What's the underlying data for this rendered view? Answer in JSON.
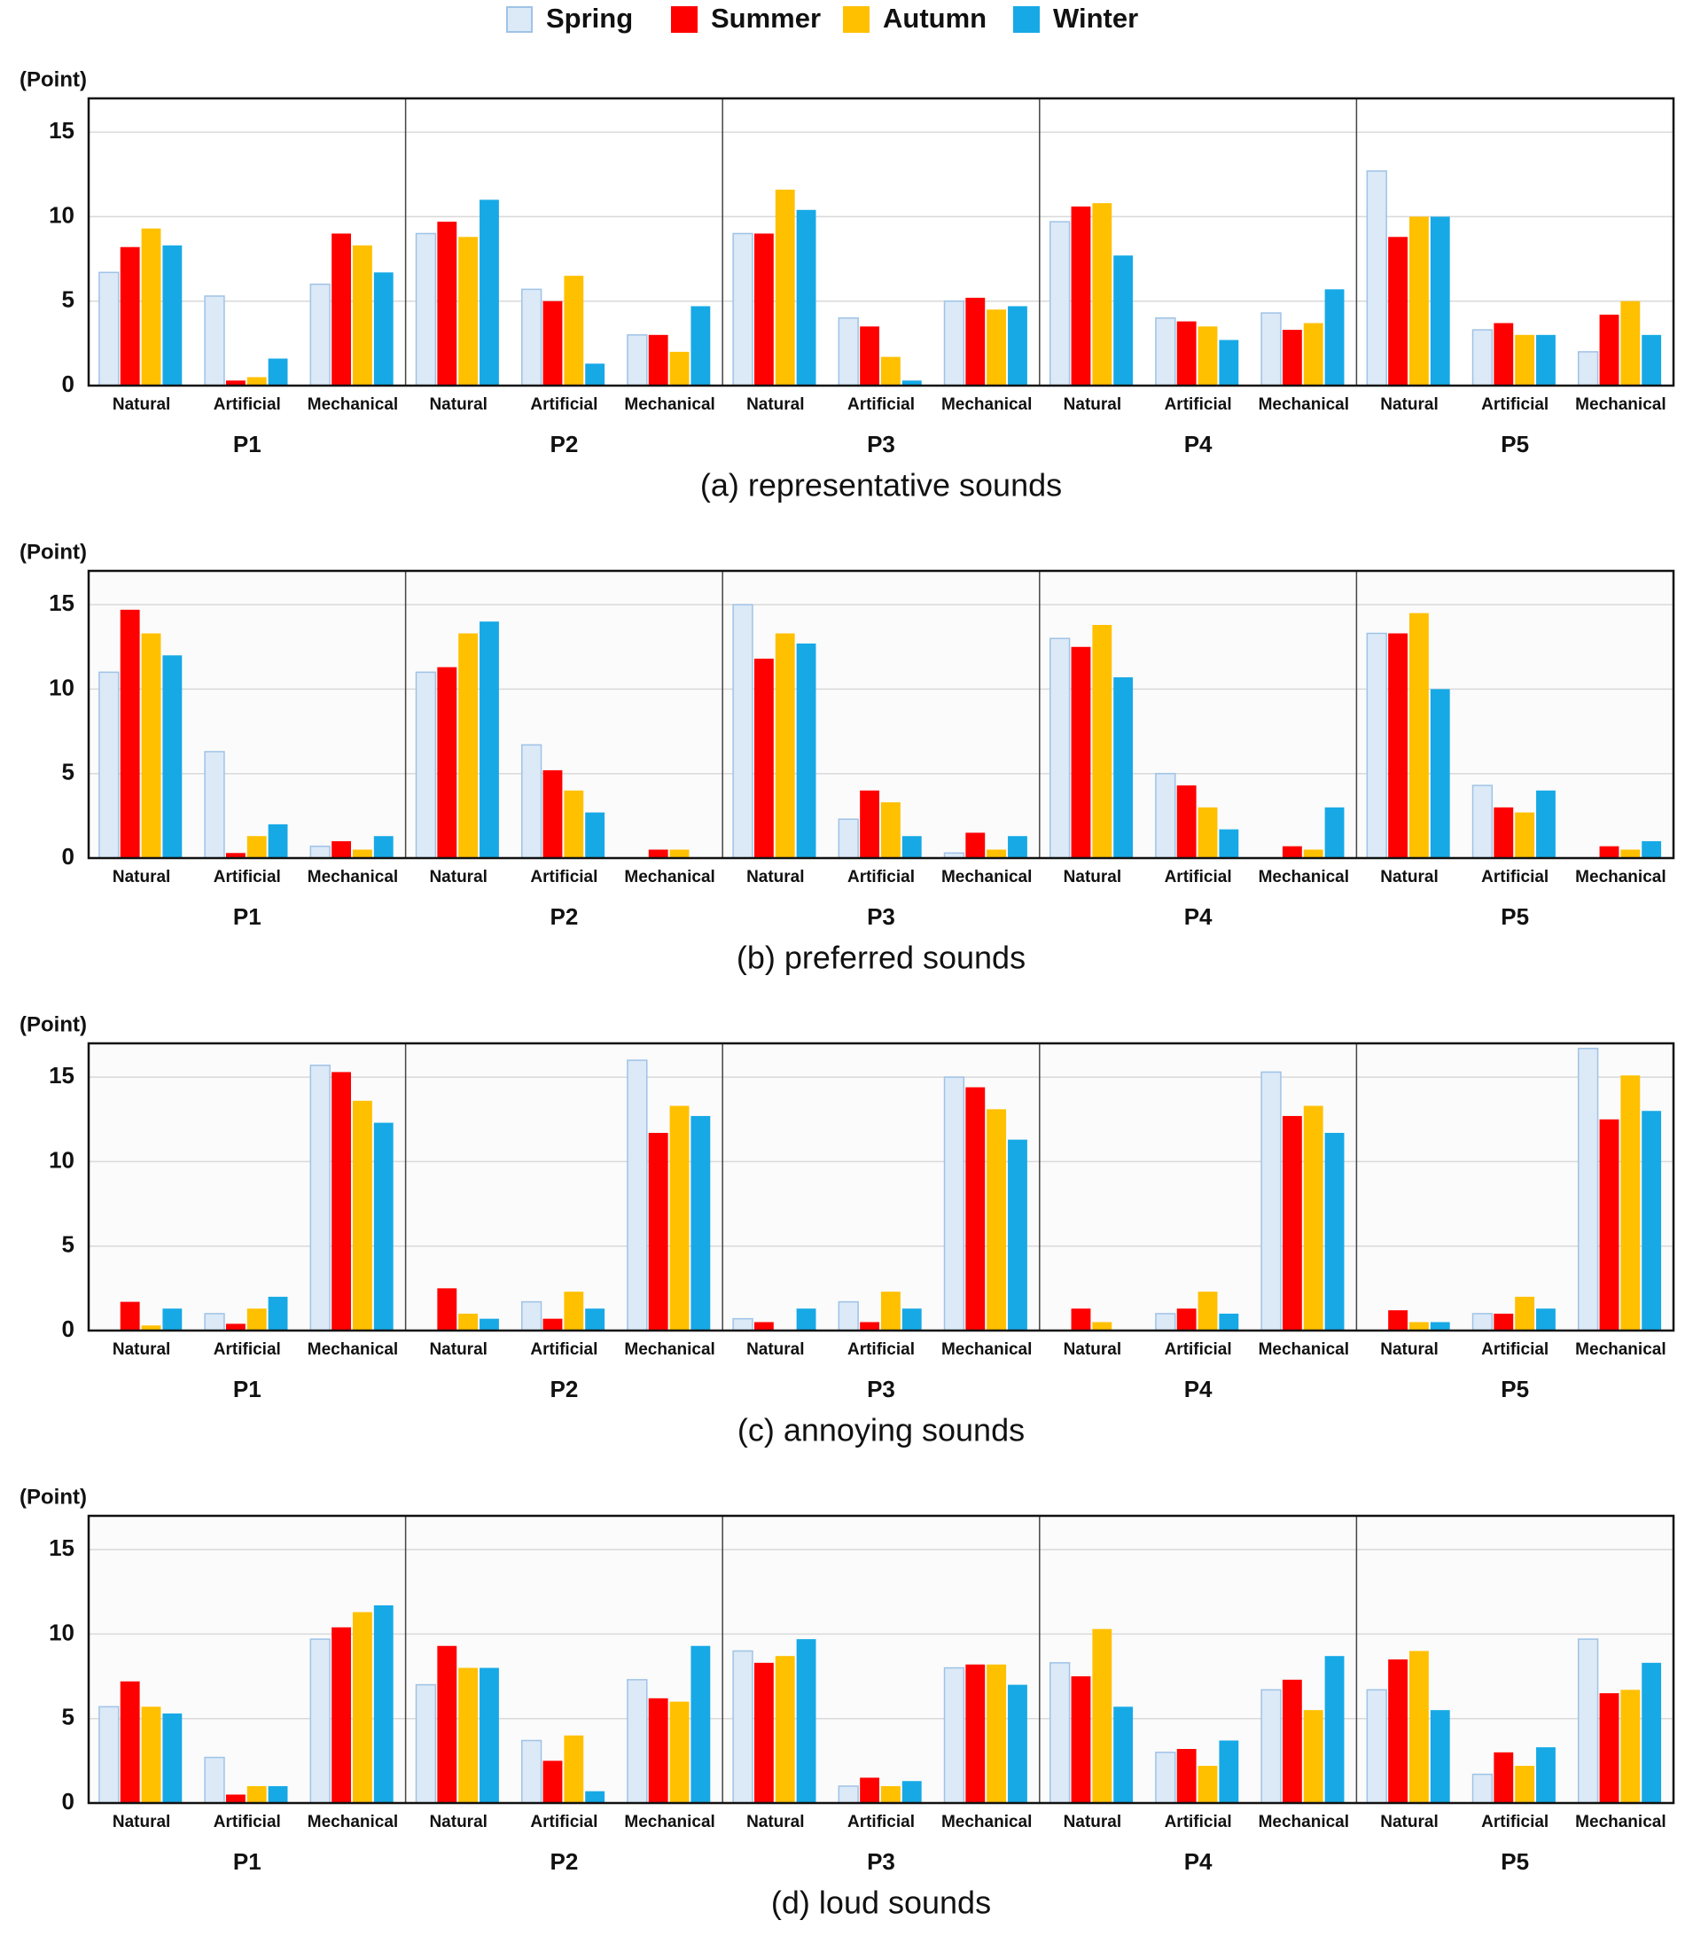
{
  "legend": [
    {
      "name": "Spring",
      "color": "#dce9f7",
      "stroke": "#9fc3e6"
    },
    {
      "name": "Summer",
      "color": "#ff0000",
      "stroke": "#ff0000"
    },
    {
      "name": "Autumn",
      "color": "#ffc000",
      "stroke": "#ffc000"
    },
    {
      "name": "Winter",
      "color": "#16a9e6",
      "stroke": "#16a9e6"
    }
  ],
  "chart_data": [
    {
      "type": "bar",
      "title": "(a)  representative  sounds",
      "ylabel": "(Point)",
      "groups": [
        "P1",
        "P2",
        "P3",
        "P4",
        "P5"
      ],
      "categories": [
        "Natural",
        "Artificial",
        "Mechanical",
        "Natural",
        "Artificial",
        "Mechanical",
        "Natural",
        "Artificial",
        "Mechanical",
        "Natural",
        "Artificial",
        "Mechanical",
        "Natural",
        "Artificial",
        "Mechanical"
      ],
      "ylim": [
        0,
        17
      ],
      "yticks": [
        0,
        5,
        10,
        15
      ],
      "grid": true,
      "series": [
        {
          "values": [
            6.7,
            5.3,
            6.0,
            9.0,
            5.7,
            3.0,
            9.0,
            4.0,
            5.0,
            9.7,
            4.0,
            4.3,
            12.7,
            3.3,
            2.0
          ]
        },
        {
          "values": [
            8.2,
            0.3,
            9.0,
            9.7,
            5.0,
            3.0,
            9.0,
            3.5,
            5.2,
            10.6,
            3.8,
            3.3,
            8.8,
            3.7,
            4.2
          ]
        },
        {
          "values": [
            9.3,
            0.5,
            8.3,
            8.8,
            6.5,
            2.0,
            11.6,
            1.7,
            4.5,
            10.8,
            3.5,
            3.7,
            10.0,
            3.0,
            5.0
          ]
        },
        {
          "values": [
            8.3,
            1.6,
            6.7,
            11.0,
            1.3,
            4.7,
            10.4,
            0.3,
            4.7,
            7.7,
            2.7,
            5.7,
            10.0,
            3.0,
            3.0
          ]
        }
      ]
    },
    {
      "type": "bar",
      "title": "(b)  preferred  sounds",
      "ylabel": "(Point)",
      "groups": [
        "P1",
        "P2",
        "P3",
        "P4",
        "P5"
      ],
      "categories": [
        "Natural",
        "Artificial",
        "Mechanical",
        "Natural",
        "Artificial",
        "Mechanical",
        "Natural",
        "Artificial",
        "Mechanical",
        "Natural",
        "Artificial",
        "Mechanical",
        "Natural",
        "Artificial",
        "Mechanical"
      ],
      "ylim": [
        0,
        17
      ],
      "yticks": [
        0,
        5,
        10,
        15
      ],
      "grid": true,
      "series": [
        {
          "values": [
            11.0,
            6.3,
            0.7,
            11.0,
            6.7,
            0,
            15.0,
            2.3,
            0.3,
            13.0,
            5.0,
            0,
            13.3,
            4.3,
            0
          ]
        },
        {
          "values": [
            14.7,
            0.3,
            1.0,
            11.3,
            5.2,
            0.5,
            11.8,
            4.0,
            1.5,
            12.5,
            4.3,
            0.7,
            13.3,
            3.0,
            0.7
          ]
        },
        {
          "values": [
            13.3,
            1.3,
            0.5,
            13.3,
            4.0,
            0.5,
            13.3,
            3.3,
            0.5,
            13.8,
            3.0,
            0.5,
            14.5,
            2.7,
            0.5
          ]
        },
        {
          "values": [
            12.0,
            2.0,
            1.3,
            14.0,
            2.7,
            0,
            12.7,
            1.3,
            1.3,
            10.7,
            1.7,
            3.0,
            10.0,
            4.0,
            1.0
          ]
        }
      ]
    },
    {
      "type": "bar",
      "title": "(c)  annoying  sounds",
      "ylabel": "(Point)",
      "groups": [
        "P1",
        "P2",
        "P3",
        "P4",
        "P5"
      ],
      "categories": [
        "Natural",
        "Artificial",
        "Mechanical",
        "Natural",
        "Artificial",
        "Mechanical",
        "Natural",
        "Artificial",
        "Mechanical",
        "Natural",
        "Artificial",
        "Mechanical",
        "Natural",
        "Artificial",
        "Mechanical"
      ],
      "ylim": [
        0,
        17
      ],
      "yticks": [
        0,
        5,
        10,
        15
      ],
      "grid": true,
      "series": [
        {
          "values": [
            0,
            1.0,
            15.7,
            0,
            1.7,
            16.0,
            0.7,
            1.7,
            15.0,
            0,
            1.0,
            15.3,
            0,
            1.0,
            16.7
          ]
        },
        {
          "values": [
            1.7,
            0.4,
            15.3,
            2.5,
            0.7,
            11.7,
            0.5,
            0.5,
            14.4,
            1.3,
            1.3,
            12.7,
            1.2,
            1.0,
            12.5
          ]
        },
        {
          "values": [
            0.3,
            1.3,
            13.6,
            1.0,
            2.3,
            13.3,
            0,
            2.3,
            13.1,
            0.5,
            2.3,
            13.3,
            0.5,
            2.0,
            15.1
          ]
        },
        {
          "values": [
            1.3,
            2.0,
            12.3,
            0.7,
            1.3,
            12.7,
            1.3,
            1.3,
            11.3,
            0,
            1.0,
            11.7,
            0.5,
            1.3,
            13.0
          ]
        }
      ]
    },
    {
      "type": "bar",
      "title": "(d)  loud  sounds",
      "ylabel": "(Point)",
      "groups": [
        "P1",
        "P2",
        "P3",
        "P4",
        "P5"
      ],
      "categories": [
        "Natural",
        "Artificial",
        "Mechanical",
        "Natural",
        "Artificial",
        "Mechanical",
        "Natural",
        "Artificial",
        "Mechanical",
        "Natural",
        "Artificial",
        "Mechanical",
        "Natural",
        "Artificial",
        "Mechanical"
      ],
      "ylim": [
        0,
        17
      ],
      "yticks": [
        0,
        5,
        10,
        15
      ],
      "grid": true,
      "series": [
        {
          "values": [
            5.7,
            2.7,
            9.7,
            7.0,
            3.7,
            7.3,
            9.0,
            1.0,
            8.0,
            8.3,
            3.0,
            6.7,
            6.7,
            1.7,
            9.7
          ]
        },
        {
          "values": [
            7.2,
            0.5,
            10.4,
            9.3,
            2.5,
            6.2,
            8.3,
            1.5,
            8.2,
            7.5,
            3.2,
            7.3,
            8.5,
            3.0,
            6.5
          ]
        },
        {
          "values": [
            5.7,
            1.0,
            11.3,
            8.0,
            4.0,
            6.0,
            8.7,
            1.0,
            8.2,
            10.3,
            2.2,
            5.5,
            9.0,
            2.2,
            6.7
          ]
        },
        {
          "values": [
            5.3,
            1.0,
            11.7,
            8.0,
            0.7,
            9.3,
            9.7,
            1.3,
            7.0,
            5.7,
            3.7,
            8.7,
            5.5,
            3.3,
            8.3
          ]
        }
      ]
    }
  ]
}
